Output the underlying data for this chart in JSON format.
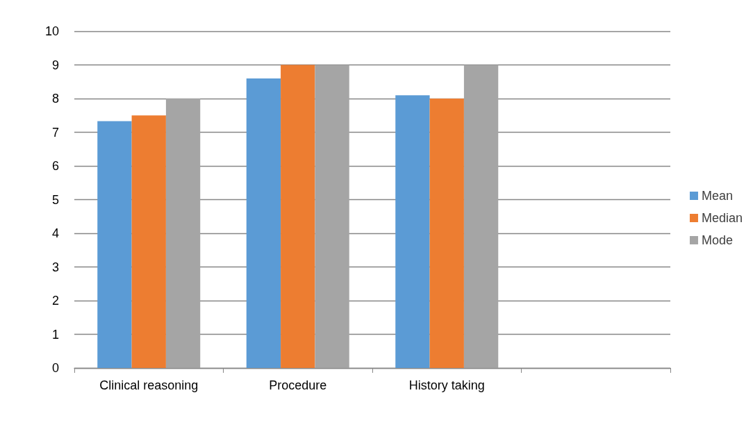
{
  "chart_data": {
    "type": "bar",
    "categories": [
      "Clinical reasoning",
      "Procedure",
      "History taking",
      null
    ],
    "series": [
      {
        "name": "Mean",
        "color": "#5b9bd5",
        "values": [
          7.33,
          8.6,
          8.1,
          null
        ]
      },
      {
        "name": "Median",
        "color": "#ed7d31",
        "values": [
          7.5,
          9,
          8,
          null
        ]
      },
      {
        "name": "Mode",
        "color": "#a5a5a5",
        "values": [
          8,
          9,
          9,
          null
        ]
      }
    ],
    "ylim": [
      0,
      10
    ],
    "yticks": [
      0,
      1,
      2,
      3,
      4,
      5,
      6,
      7,
      8,
      9,
      10
    ],
    "grid": "y",
    "legend": "right"
  }
}
